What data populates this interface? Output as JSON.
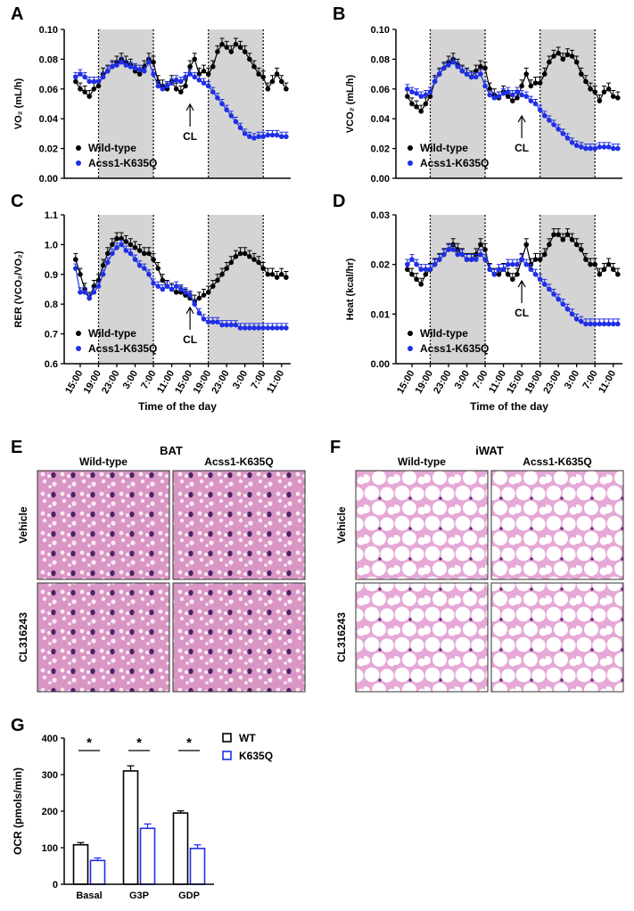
{
  "chart_data": [
    {
      "type": "line",
      "label": "A",
      "ylabel": "VO₂ (mL/h)",
      "x": [
        1,
        2,
        3,
        4,
        5,
        6,
        7,
        8,
        9,
        10,
        11,
        12,
        13,
        14,
        15,
        16,
        17,
        18,
        19,
        20,
        21,
        22,
        23,
        24,
        25,
        26,
        27,
        28,
        29,
        30,
        31,
        32,
        33,
        34,
        35,
        36,
        37,
        38,
        39,
        40,
        41,
        42,
        43,
        44,
        45,
        46,
        47
      ],
      "series": [
        {
          "name": "Wild-type",
          "color": "#000000",
          "error": 0.004,
          "values": [
            0.065,
            0.06,
            0.058,
            0.055,
            0.06,
            0.062,
            0.07,
            0.072,
            0.075,
            0.078,
            0.08,
            0.078,
            0.076,
            0.072,
            0.07,
            0.075,
            0.08,
            0.078,
            0.065,
            0.062,
            0.06,
            0.065,
            0.06,
            0.058,
            0.062,
            0.075,
            0.08,
            0.07,
            0.072,
            0.07,
            0.075,
            0.085,
            0.09,
            0.088,
            0.085,
            0.09,
            0.088,
            0.085,
            0.08,
            0.075,
            0.07,
            0.068,
            0.06,
            0.065,
            0.07,
            0.065,
            0.06
          ]
        },
        {
          "name": "Acss1-K635Q",
          "color": "#1f2fe6",
          "error": 0.003,
          "values": [
            0.068,
            0.07,
            0.068,
            0.065,
            0.065,
            0.065,
            0.068,
            0.072,
            0.075,
            0.076,
            0.078,
            0.076,
            0.075,
            0.074,
            0.073,
            0.072,
            0.078,
            0.07,
            0.062,
            0.06,
            0.062,
            0.064,
            0.066,
            0.065,
            0.068,
            0.07,
            0.068,
            0.066,
            0.064,
            0.062,
            0.058,
            0.054,
            0.05,
            0.046,
            0.042,
            0.038,
            0.034,
            0.03,
            0.028,
            0.027,
            0.028,
            0.028,
            0.029,
            0.029,
            0.029,
            0.028,
            0.028
          ]
        }
      ],
      "xlim": [
        -1.5,
        48
      ],
      "ylim": [
        0,
        0.1
      ],
      "yticks": [
        {
          "value": 0,
          "label": "0.00"
        },
        {
          "value": 0.02,
          "label": "0.02"
        },
        {
          "value": 0.04,
          "label": "0.04"
        },
        {
          "value": 0.06,
          "label": "0.06"
        },
        {
          "value": 0.08,
          "label": "0.08"
        },
        {
          "value": 0.1,
          "label": "0.10"
        }
      ],
      "shaded": [
        [
          6,
          18
        ],
        [
          30,
          42
        ]
      ],
      "annotation": {
        "text": "CL",
        "x": 26,
        "y": 0.0497
      },
      "legend": "lower left"
    },
    {
      "type": "line",
      "label": "B",
      "ylabel": "VCO₂ (mL/h)",
      "x": [
        1,
        2,
        3,
        4,
        5,
        6,
        7,
        8,
        9,
        10,
        11,
        12,
        13,
        14,
        15,
        16,
        17,
        18,
        19,
        20,
        21,
        22,
        23,
        24,
        25,
        26,
        27,
        28,
        29,
        30,
        31,
        32,
        33,
        34,
        35,
        36,
        37,
        38,
        39,
        40,
        41,
        42,
        43,
        44,
        45,
        46,
        47
      ],
      "series": [
        {
          "name": "Wild-type",
          "color": "#000000",
          "error": 0.004,
          "values": [
            0.055,
            0.05,
            0.048,
            0.045,
            0.05,
            0.055,
            0.065,
            0.07,
            0.074,
            0.078,
            0.08,
            0.076,
            0.072,
            0.07,
            0.068,
            0.072,
            0.075,
            0.074,
            0.06,
            0.056,
            0.054,
            0.058,
            0.055,
            0.052,
            0.054,
            0.062,
            0.07,
            0.062,
            0.064,
            0.064,
            0.07,
            0.078,
            0.082,
            0.084,
            0.08,
            0.083,
            0.082,
            0.078,
            0.07,
            0.065,
            0.06,
            0.058,
            0.052,
            0.058,
            0.06,
            0.055,
            0.054
          ]
        },
        {
          "name": "Acss1-K635Q",
          "color": "#1f2fe6",
          "error": 0.003,
          "values": [
            0.06,
            0.058,
            0.057,
            0.055,
            0.056,
            0.058,
            0.065,
            0.07,
            0.074,
            0.076,
            0.078,
            0.075,
            0.072,
            0.07,
            0.068,
            0.068,
            0.07,
            0.062,
            0.056,
            0.054,
            0.055,
            0.057,
            0.058,
            0.056,
            0.058,
            0.056,
            0.055,
            0.052,
            0.05,
            0.046,
            0.042,
            0.039,
            0.036,
            0.033,
            0.03,
            0.027,
            0.024,
            0.022,
            0.021,
            0.02,
            0.02,
            0.02,
            0.021,
            0.021,
            0.021,
            0.02,
            0.02
          ]
        }
      ],
      "xlim": [
        -1.5,
        48
      ],
      "ylim": [
        0,
        0.1
      ],
      "yticks": [
        {
          "value": 0,
          "label": "0.00"
        },
        {
          "value": 0.02,
          "label": "0.02"
        },
        {
          "value": 0.04,
          "label": "0.04"
        },
        {
          "value": 0.06,
          "label": "0.06"
        },
        {
          "value": 0.08,
          "label": "0.08"
        },
        {
          "value": 0.1,
          "label": "0.10"
        }
      ],
      "shaded": [
        [
          6,
          18
        ],
        [
          30,
          42
        ]
      ],
      "annotation": {
        "text": "CL",
        "x": 26,
        "y": 0.0419
      },
      "legend": "lower left"
    },
    {
      "type": "line",
      "label": "C",
      "ylabel": "RER (VCO₂/VO₂)",
      "xlabel": "Time of the day",
      "x": [
        1,
        2,
        3,
        4,
        5,
        6,
        7,
        8,
        9,
        10,
        11,
        12,
        13,
        14,
        15,
        16,
        17,
        18,
        19,
        20,
        21,
        22,
        23,
        24,
        25,
        26,
        27,
        28,
        29,
        30,
        31,
        32,
        33,
        34,
        35,
        36,
        37,
        38,
        39,
        40,
        41,
        42,
        43,
        44,
        45,
        46,
        47
      ],
      "series": [
        {
          "name": "Wild-type",
          "color": "#000000",
          "error": 0.02,
          "values": [
            0.95,
            0.9,
            0.85,
            0.82,
            0.86,
            0.88,
            0.93,
            0.97,
            1.0,
            1.02,
            1.02,
            1.01,
            1.0,
            0.99,
            0.98,
            0.97,
            0.97,
            0.95,
            0.92,
            0.88,
            0.86,
            0.85,
            0.84,
            0.84,
            0.83,
            0.82,
            0.81,
            0.82,
            0.83,
            0.84,
            0.86,
            0.88,
            0.9,
            0.92,
            0.94,
            0.96,
            0.97,
            0.97,
            0.96,
            0.95,
            0.94,
            0.92,
            0.9,
            0.9,
            0.89,
            0.9,
            0.89
          ]
        },
        {
          "name": "Acss1-K635Q",
          "color": "#1f2fe6",
          "error": 0.015,
          "values": [
            0.92,
            0.84,
            0.84,
            0.82,
            0.84,
            0.86,
            0.9,
            0.94,
            0.97,
            0.99,
            1.0,
            0.98,
            0.97,
            0.95,
            0.93,
            0.92,
            0.9,
            0.87,
            0.86,
            0.85,
            0.86,
            0.85,
            0.86,
            0.85,
            0.84,
            0.83,
            0.8,
            0.77,
            0.75,
            0.74,
            0.74,
            0.74,
            0.73,
            0.73,
            0.73,
            0.73,
            0.72,
            0.72,
            0.72,
            0.72,
            0.72,
            0.72,
            0.72,
            0.72,
            0.72,
            0.72,
            0.72
          ]
        }
      ],
      "xlim": [
        -1.5,
        48
      ],
      "ylim": [
        0.6,
        1.1
      ],
      "yticks": [
        0.6,
        0.7,
        0.8,
        0.9,
        {
          "value": 1,
          "label": "1.0"
        },
        1.1
      ],
      "xticks": [
        {
          "value": 2,
          "label": "15:00"
        },
        {
          "value": 6,
          "label": "19:00"
        },
        {
          "value": 10,
          "label": "23:00"
        },
        {
          "value": 14,
          "label": "3:00"
        },
        {
          "value": 18,
          "label": "7:00"
        },
        {
          "value": 22,
          "label": "11:00"
        },
        {
          "value": 26,
          "label": "15:00"
        },
        {
          "value": 30,
          "label": "19:00"
        },
        {
          "value": 34,
          "label": "23:00"
        },
        {
          "value": 38,
          "label": "3:00"
        },
        {
          "value": 42,
          "label": "7:00"
        },
        {
          "value": 46,
          "label": "11:00"
        }
      ],
      "shaded": [
        [
          6,
          18
        ],
        [
          30,
          42
        ]
      ],
      "annotation": {
        "text": "CL",
        "x": 26,
        "y": 0.789
      },
      "legend": "lower left"
    },
    {
      "type": "line",
      "label": "D",
      "ylabel": "Heat (kcal/hr)",
      "xlabel": "Time of the day",
      "x": [
        1,
        2,
        3,
        4,
        5,
        6,
        7,
        8,
        9,
        10,
        11,
        12,
        13,
        14,
        15,
        16,
        17,
        18,
        19,
        20,
        21,
        22,
        23,
        24,
        25,
        26,
        27,
        28,
        29,
        30,
        31,
        32,
        33,
        34,
        35,
        36,
        37,
        38,
        39,
        40,
        41,
        42,
        43,
        44,
        45,
        46,
        47
      ],
      "series": [
        {
          "name": "Wild-type",
          "color": "#000000",
          "error": 0.0012,
          "values": [
            0.019,
            0.018,
            0.017,
            0.016,
            0.018,
            0.019,
            0.02,
            0.021,
            0.022,
            0.023,
            0.024,
            0.023,
            0.022,
            0.021,
            0.021,
            0.022,
            0.024,
            0.023,
            0.019,
            0.018,
            0.018,
            0.019,
            0.018,
            0.017,
            0.018,
            0.021,
            0.024,
            0.02,
            0.021,
            0.021,
            0.022,
            0.024,
            0.026,
            0.026,
            0.025,
            0.026,
            0.025,
            0.024,
            0.023,
            0.021,
            0.02,
            0.02,
            0.018,
            0.019,
            0.02,
            0.019,
            0.018
          ]
        },
        {
          "name": "Acss1-K635Q",
          "color": "#1f2fe6",
          "error": 0.001,
          "values": [
            0.02,
            0.021,
            0.02,
            0.019,
            0.019,
            0.019,
            0.02,
            0.021,
            0.022,
            0.023,
            0.023,
            0.022,
            0.022,
            0.021,
            0.021,
            0.021,
            0.022,
            0.021,
            0.019,
            0.018,
            0.019,
            0.019,
            0.02,
            0.02,
            0.02,
            0.021,
            0.02,
            0.019,
            0.018,
            0.017,
            0.016,
            0.015,
            0.014,
            0.013,
            0.012,
            0.011,
            0.01,
            0.009,
            0.0085,
            0.008,
            0.008,
            0.008,
            0.008,
            0.008,
            0.008,
            0.008,
            0.008
          ]
        }
      ],
      "xlim": [
        -1.5,
        48
      ],
      "ylim": [
        0,
        0.03
      ],
      "yticks": [
        {
          "value": 0,
          "label": "0.00"
        },
        {
          "value": 0.01,
          "label": "0.01"
        },
        {
          "value": 0.02,
          "label": "0.02"
        },
        {
          "value": 0.03,
          "label": "0.03"
        }
      ],
      "xticks": [
        {
          "value": 2,
          "label": "15:00"
        },
        {
          "value": 6,
          "label": "19:00"
        },
        {
          "value": 10,
          "label": "23:00"
        },
        {
          "value": 14,
          "label": "3:00"
        },
        {
          "value": 18,
          "label": "7:00"
        },
        {
          "value": 22,
          "label": "11:00"
        },
        {
          "value": 26,
          "label": "15:00"
        },
        {
          "value": 30,
          "label": "19:00"
        },
        {
          "value": 34,
          "label": "23:00"
        },
        {
          "value": 38,
          "label": "3:00"
        },
        {
          "value": 42,
          "label": "7:00"
        },
        {
          "value": 46,
          "label": "11:00"
        }
      ],
      "shaded": [
        [
          6,
          18
        ],
        [
          30,
          42
        ]
      ],
      "annotation": {
        "text": "CL",
        "x": 26,
        "y": 0.0167
      },
      "legend": "lower left"
    },
    {
      "type": "bar",
      "label": "G",
      "ylabel": "OCR (pmols/min)",
      "categories": [
        "Basal",
        "G3P",
        "GDP"
      ],
      "series": [
        {
          "name": "WT",
          "color": "#000000",
          "values": [
            108,
            310,
            195
          ],
          "errors": [
            6,
            14,
            6
          ]
        },
        {
          "name": "K635Q",
          "color": "#1f2fe6",
          "values": [
            65,
            153,
            98
          ],
          "errors": [
            7,
            12,
            10
          ]
        }
      ],
      "ylim": [
        0,
        400
      ],
      "yticks": [
        0,
        100,
        200,
        300,
        400
      ],
      "significance": [
        "*",
        "*",
        "*"
      ],
      "legend": "upper right"
    }
  ],
  "histology": [
    {
      "label": "E",
      "title": "BAT",
      "columns": [
        "Wild-type",
        "Acss1-K635Q"
      ],
      "rows": [
        "Vehicle",
        "CL316243"
      ],
      "tissue": "brown"
    },
    {
      "label": "F",
      "title": "iWAT",
      "columns": [
        "Wild-type",
        "Acss1-K635Q"
      ],
      "rows": [
        "Vehicle",
        "CL316243"
      ],
      "tissue": "white"
    }
  ]
}
